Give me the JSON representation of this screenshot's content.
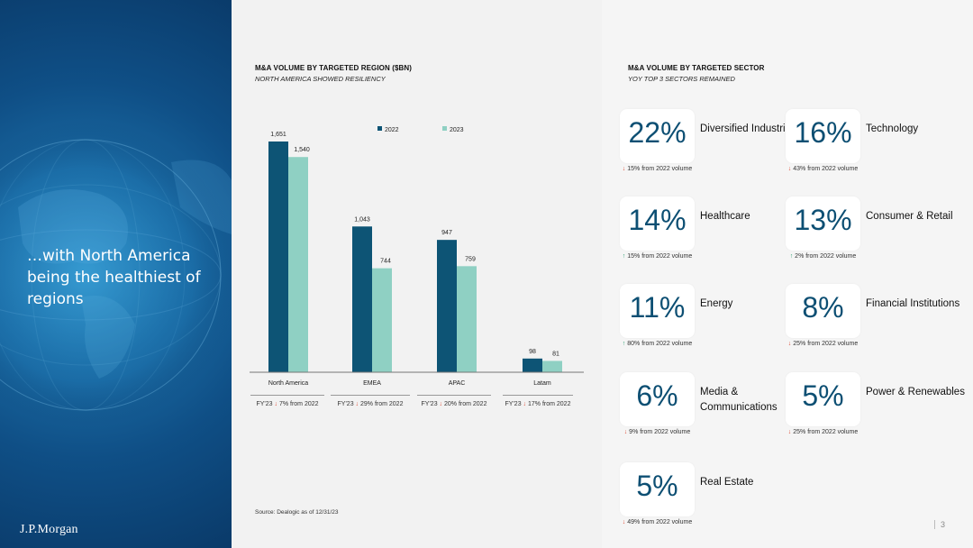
{
  "headline": "…with North America being the healthiest of regions",
  "logo": "J.P.Morgan",
  "page_number": "3",
  "region_section": {
    "title": "M&A VOLUME BY TARGETED REGION ($BN)",
    "subtitle": "NORTH AMERICA SHOWED RESILIENCY",
    "source": "Source: Dealogic as of 12/31/23",
    "notes": [
      {
        "prefix": "FY'23",
        "arrow": "down",
        "text": "7% from 2022"
      },
      {
        "prefix": "FY'23",
        "arrow": "down",
        "text": "29% from 2022"
      },
      {
        "prefix": "FY'23",
        "arrow": "down",
        "text": "20% from 2022"
      },
      {
        "prefix": "FY'23",
        "arrow": "down",
        "text": "17% from 2022"
      }
    ]
  },
  "chart_data": {
    "type": "bar",
    "categories": [
      "North America",
      "EMEA",
      "APAC",
      "Latam"
    ],
    "series": [
      {
        "name": "2022",
        "values": [
          1651,
          1043,
          947,
          98
        ],
        "labels": [
          "1,651",
          "1,043",
          "947",
          "98"
        ],
        "color": "#0d5475"
      },
      {
        "name": "2023",
        "values": [
          1540,
          744,
          759,
          81
        ],
        "labels": [
          "1,540",
          "744",
          "759",
          "81"
        ],
        "color": "#8fd0c3"
      }
    ],
    "ylim": [
      0,
      1800
    ],
    "legend": "top",
    "grid": false
  },
  "sector_section": {
    "title": "M&A VOLUME BY TARGETED SECTOR",
    "subtitle": "YOY TOP 3 SECTORS REMAINED",
    "sectors": [
      {
        "pct": "22%",
        "name": "Diversified Industries",
        "arrow": "down",
        "change": "15% from 2022 volume"
      },
      {
        "pct": "16%",
        "name": "Technology",
        "arrow": "down",
        "change": "43% from 2022 volume"
      },
      {
        "pct": "14%",
        "name": "Healthcare",
        "arrow": "up",
        "change": "15% from 2022 volume"
      },
      {
        "pct": "13%",
        "name": "Consumer & Retail",
        "arrow": "up",
        "change": "2% from 2022 volume"
      },
      {
        "pct": "11%",
        "name": "Energy",
        "arrow": "up",
        "change": "80% from 2022 volume"
      },
      {
        "pct": "8%",
        "name": "Financial Institutions",
        "arrow": "down",
        "change": "25% from 2022 volume"
      },
      {
        "pct": "6%",
        "name": "Media & Communications",
        "arrow": "down",
        "change": "9% from 2022 volume"
      },
      {
        "pct": "5%",
        "name": "Power & Renewables",
        "arrow": "down",
        "change": "25% from 2022 volume"
      },
      {
        "pct": "5%",
        "name": "Real Estate",
        "arrow": "down",
        "change": "49% from 2022 volume"
      }
    ]
  }
}
